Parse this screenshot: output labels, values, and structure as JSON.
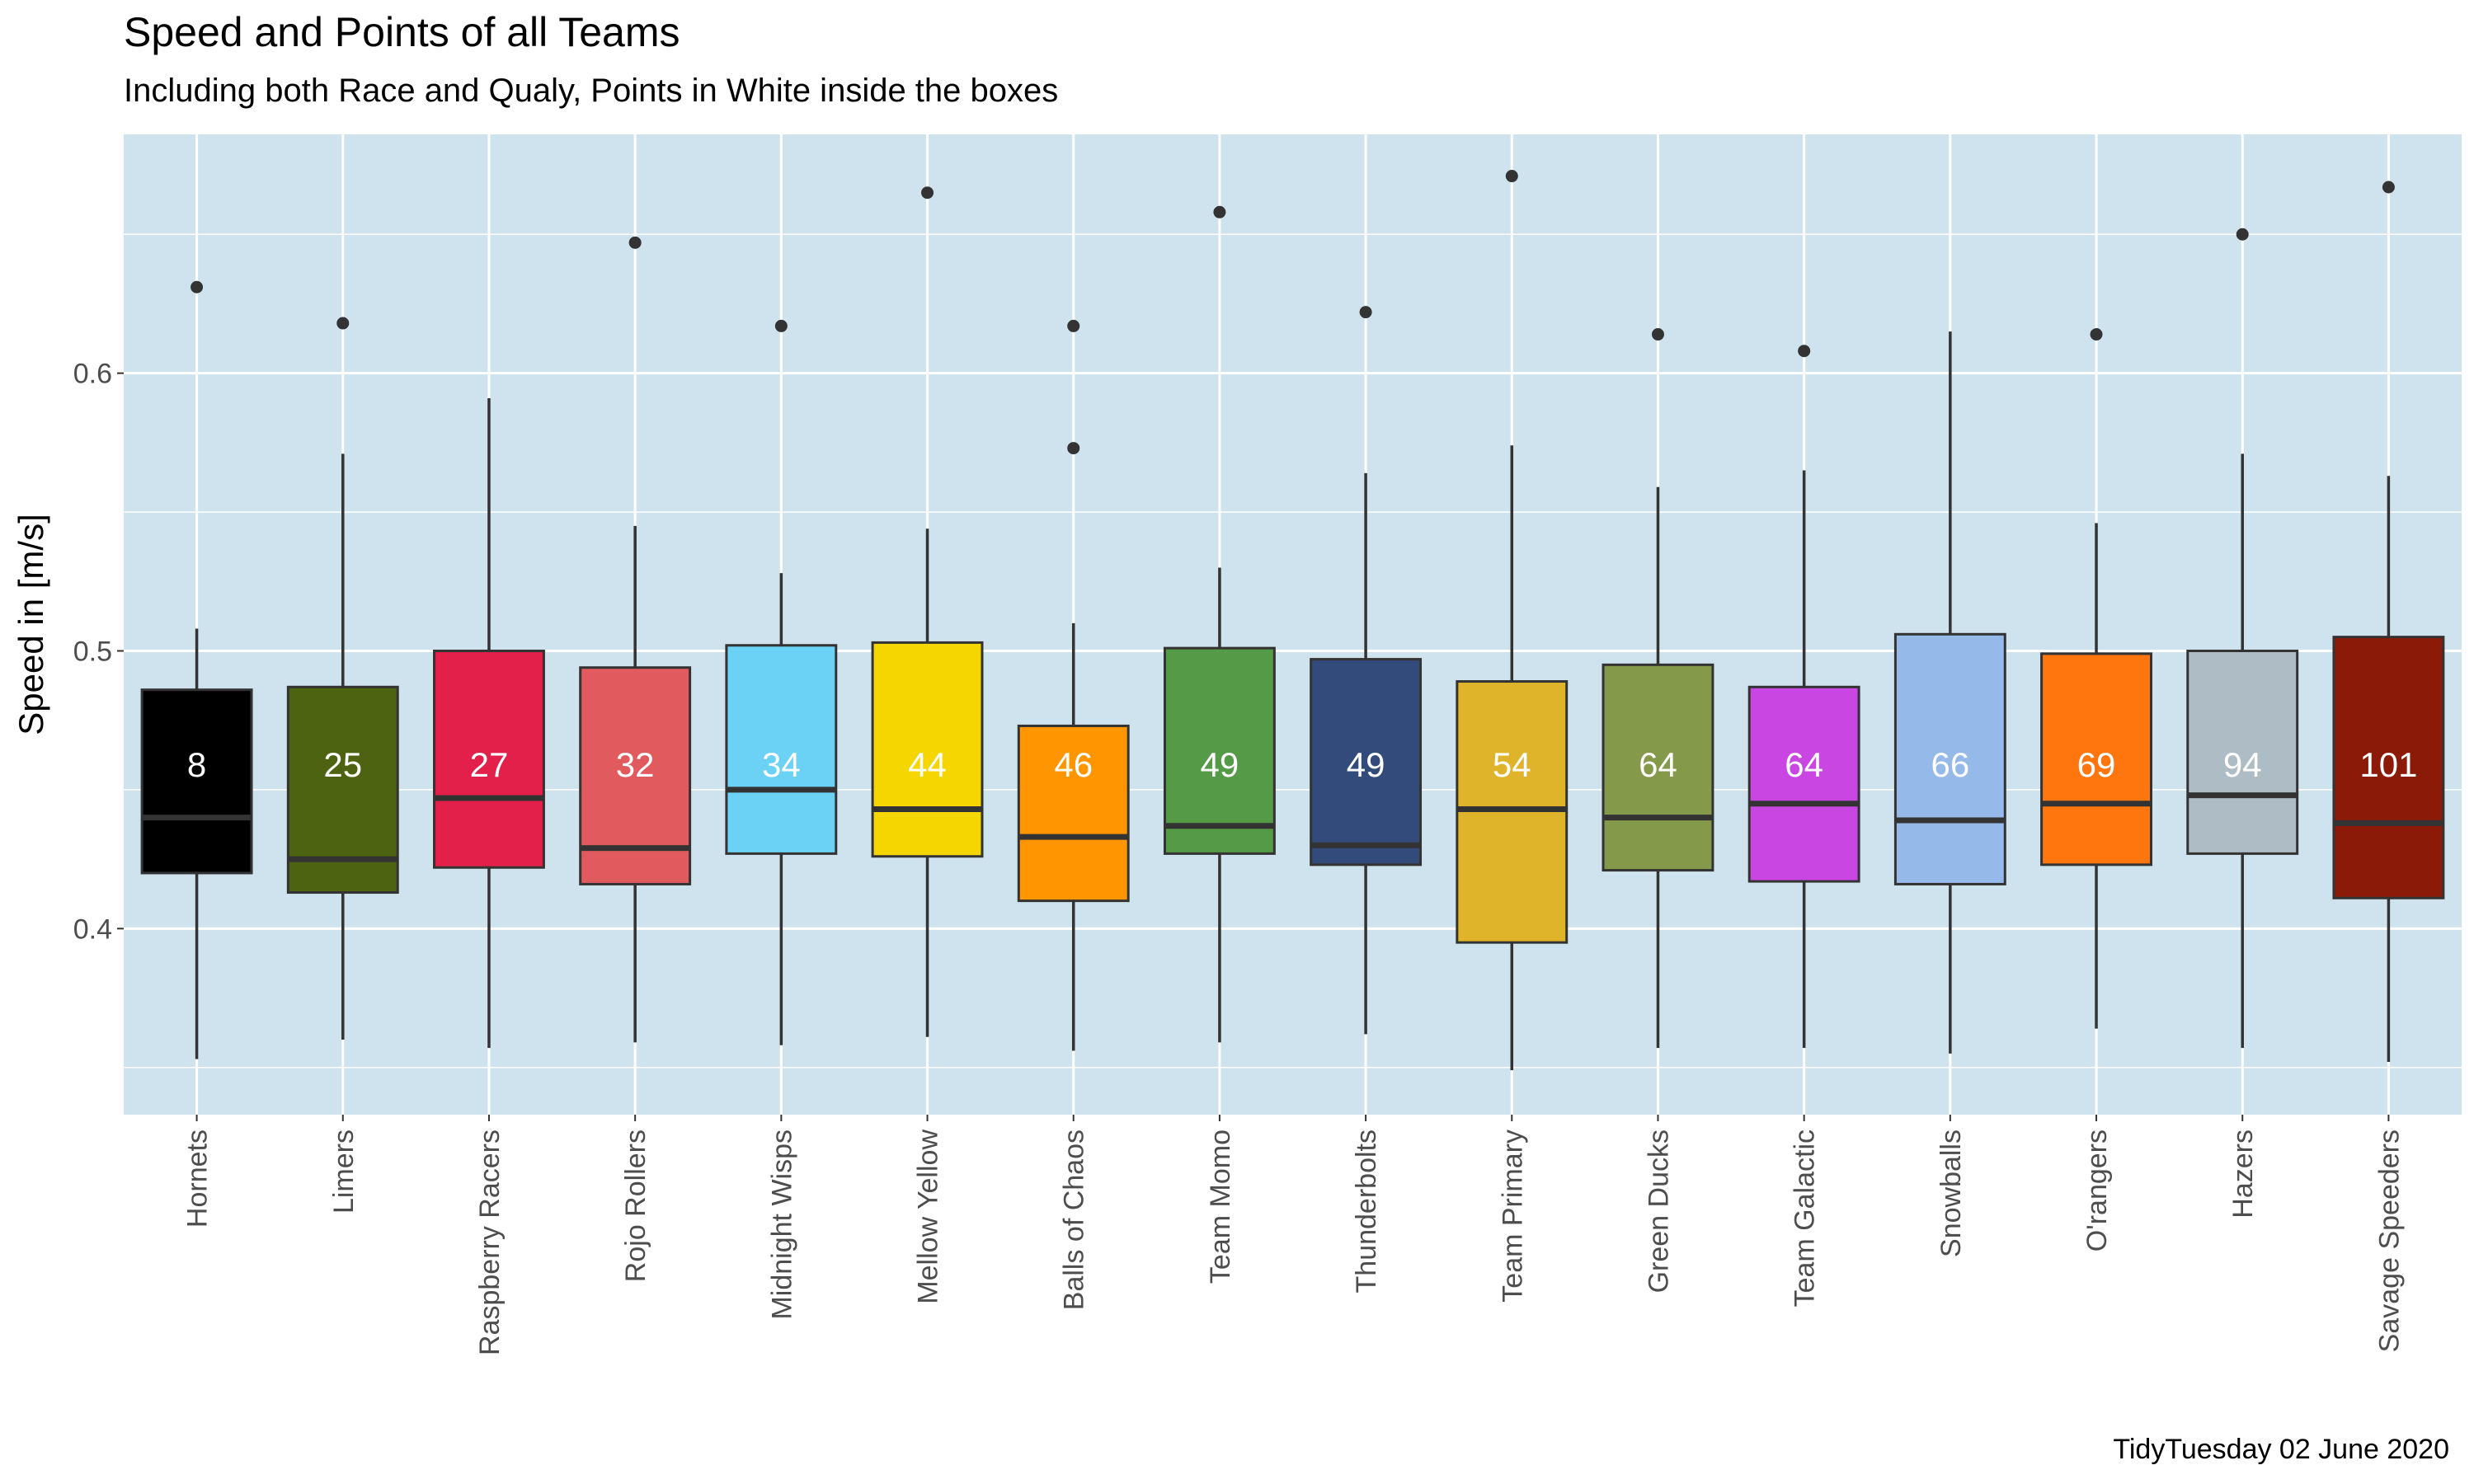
{
  "chart_data": {
    "type": "box",
    "title": "Speed and Points of all Teams",
    "subtitle": "Including both Race and Qualy, Points in White inside the boxes",
    "caption": "TidyTuesday 02 June 2020",
    "xlabel": "",
    "ylabel": "Speed in [m/s]",
    "ylim": [
      0.333,
      0.686
    ],
    "yticks": [
      0.4,
      0.5,
      0.6
    ],
    "ytick_labels": [
      "0.4",
      "0.5",
      "0.6"
    ],
    "background": "#cfe3ee",
    "grid": true,
    "categories": [
      "Hornets",
      "Limers",
      "Raspberry Racers",
      "Rojo Rollers",
      "Midnight Wisps",
      "Mellow Yellow",
      "Balls of Chaos",
      "Team Momo",
      "Thunderbolts",
      "Team Primary",
      "Green Ducks",
      "Team Galactic",
      "Snowballs",
      "O'rangers",
      "Hazers",
      "Savage Speeders"
    ],
    "boxes": [
      {
        "team": "Hornets",
        "points": "8",
        "color": "#000000",
        "whisker_low": 0.353,
        "q1": 0.42,
        "median": 0.44,
        "q3": 0.486,
        "whisker_high": 0.508,
        "outliers": [
          0.631
        ]
      },
      {
        "team": "Limers",
        "points": "25",
        "color": "#4d6311",
        "whisker_low": 0.36,
        "q1": 0.413,
        "median": 0.425,
        "q3": 0.487,
        "whisker_high": 0.571,
        "outliers": [
          0.618
        ]
      },
      {
        "team": "Raspberry Racers",
        "points": "27",
        "color": "#e3204a",
        "whisker_low": 0.357,
        "q1": 0.422,
        "median": 0.447,
        "q3": 0.5,
        "whisker_high": 0.591,
        "outliers": []
      },
      {
        "team": "Rojo Rollers",
        "points": "32",
        "color": "#e15b5e",
        "whisker_low": 0.359,
        "q1": 0.416,
        "median": 0.429,
        "q3": 0.494,
        "whisker_high": 0.545,
        "outliers": [
          0.647
        ]
      },
      {
        "team": "Midnight Wisps",
        "points": "34",
        "color": "#6bd1f5",
        "whisker_low": 0.358,
        "q1": 0.427,
        "median": 0.45,
        "q3": 0.502,
        "whisker_high": 0.528,
        "outliers": [
          0.617
        ]
      },
      {
        "team": "Mellow Yellow",
        "points": "44",
        "color": "#f5d600",
        "whisker_low": 0.361,
        "q1": 0.426,
        "median": 0.443,
        "q3": 0.503,
        "whisker_high": 0.544,
        "outliers": [
          0.665
        ]
      },
      {
        "team": "Balls of Chaos",
        "points": "46",
        "color": "#ff9500",
        "whisker_low": 0.356,
        "q1": 0.41,
        "median": 0.433,
        "q3": 0.473,
        "whisker_high": 0.51,
        "outliers": [
          0.573,
          0.617
        ]
      },
      {
        "team": "Team Momo",
        "points": "49",
        "color": "#559a46",
        "whisker_low": 0.359,
        "q1": 0.427,
        "median": 0.437,
        "q3": 0.501,
        "whisker_high": 0.53,
        "outliers": [
          0.658
        ]
      },
      {
        "team": "Thunderbolts",
        "points": "49",
        "color": "#334b7a",
        "whisker_low": 0.362,
        "q1": 0.423,
        "median": 0.43,
        "q3": 0.497,
        "whisker_high": 0.564,
        "outliers": [
          0.622
        ]
      },
      {
        "team": "Team Primary",
        "points": "54",
        "color": "#e0b42a",
        "whisker_low": 0.349,
        "q1": 0.395,
        "median": 0.443,
        "q3": 0.489,
        "whisker_high": 0.574,
        "outliers": [
          0.671
        ]
      },
      {
        "team": "Green Ducks",
        "points": "64",
        "color": "#85994a",
        "whisker_low": 0.357,
        "q1": 0.421,
        "median": 0.44,
        "q3": 0.495,
        "whisker_high": 0.559,
        "outliers": [
          0.614
        ]
      },
      {
        "team": "Team Galactic",
        "points": "64",
        "color": "#c946e2",
        "whisker_low": 0.357,
        "q1": 0.417,
        "median": 0.445,
        "q3": 0.487,
        "whisker_high": 0.565,
        "outliers": [
          0.608
        ]
      },
      {
        "team": "Snowballs",
        "points": "66",
        "color": "#95b9e8",
        "whisker_low": 0.355,
        "q1": 0.416,
        "median": 0.439,
        "q3": 0.506,
        "whisker_high": 0.615,
        "outliers": []
      },
      {
        "team": "O'rangers",
        "points": "69",
        "color": "#ff760f",
        "whisker_low": 0.364,
        "q1": 0.423,
        "median": 0.445,
        "q3": 0.499,
        "whisker_high": 0.546,
        "outliers": [
          0.614
        ]
      },
      {
        "team": "Hazers",
        "points": "94",
        "color": "#aebcc6",
        "whisker_low": 0.357,
        "q1": 0.427,
        "median": 0.448,
        "q3": 0.5,
        "whisker_high": 0.571,
        "outliers": [
          0.65
        ]
      },
      {
        "team": "Savage Speeders",
        "points": "101",
        "color": "#8c1a08",
        "whisker_low": 0.352,
        "q1": 0.411,
        "median": 0.438,
        "q3": 0.505,
        "whisker_high": 0.563,
        "outliers": [
          0.667
        ]
      }
    ]
  }
}
